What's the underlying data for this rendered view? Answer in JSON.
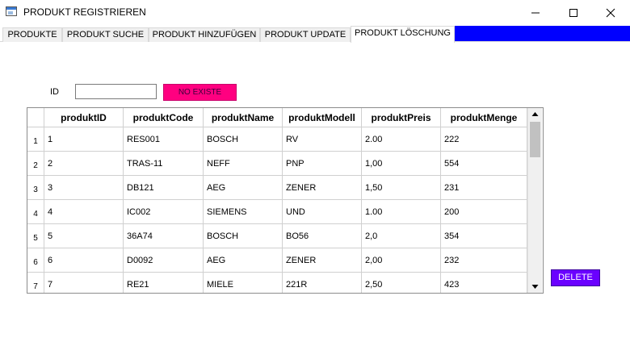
{
  "window": {
    "title": "PRODUKT REGISTRIEREN",
    "icon": "app-window-icon",
    "controls": [
      "minimize-icon",
      "maximize-icon",
      "close-icon"
    ]
  },
  "tabs": [
    {
      "label": "PRODUKTE",
      "active": false
    },
    {
      "label": "PRODUKT SUCHE",
      "active": false
    },
    {
      "label": "PRODUKT HINZUFÜGEN",
      "active": false
    },
    {
      "label": "PRODUKT UPDATE",
      "active": false
    },
    {
      "label": "PRODUKT LÖSCHUNG",
      "active": true
    }
  ],
  "form": {
    "id_label": "ID",
    "id_value": "",
    "status_button": "NO EXISTE",
    "delete_button": "DELETE"
  },
  "table": {
    "columns": [
      "produktID",
      "produktCode",
      "produktName",
      "produktModell",
      "produktPreis",
      "produktMenge"
    ],
    "rows": [
      {
        "num": "1",
        "cells": [
          "1",
          "RES001",
          "BOSCH",
          "RV",
          "2.00",
          "222"
        ]
      },
      {
        "num": "2",
        "cells": [
          "2",
          "TRAS-11",
          "NEFF",
          "PNP",
          "1,00",
          "554"
        ]
      },
      {
        "num": "3",
        "cells": [
          "3",
          "DB121",
          "AEG",
          "ZENER",
          "1,50",
          "231"
        ]
      },
      {
        "num": "4",
        "cells": [
          "4",
          "IC002",
          "SIEMENS",
          "UND",
          "1.00",
          "200"
        ]
      },
      {
        "num": "5",
        "cells": [
          "5",
          "36A74",
          "BOSCH",
          "BO56",
          "2,0",
          "354"
        ]
      },
      {
        "num": "6",
        "cells": [
          "6",
          "D0092",
          "AEG",
          "ZENER",
          "2,00",
          "232"
        ]
      },
      {
        "num": "7",
        "cells": [
          "7",
          "RE21",
          "MIELE",
          "221R",
          "2,50",
          "423"
        ]
      }
    ]
  },
  "colors": {
    "tab_fill": "#0000ff",
    "status_button": "#ff0080",
    "delete_button": "#6a00ff"
  }
}
